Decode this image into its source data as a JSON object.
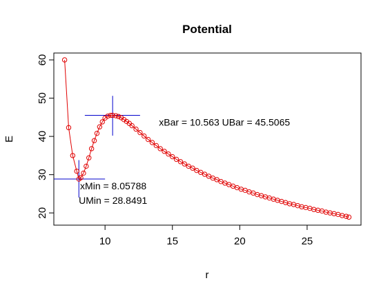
{
  "chart_data": {
    "type": "line",
    "title": "Potential",
    "xlabel": "r",
    "ylabel": "E",
    "xlim": [
      6.2,
      29.0
    ],
    "ylim": [
      16.8,
      61.8
    ],
    "xticks": [
      10,
      15,
      20,
      25
    ],
    "yticks": [
      20,
      30,
      40,
      50,
      60
    ],
    "grid": false,
    "legend": "none",
    "line_color": "#e00000",
    "marker": "open-circle",
    "marker_color": "#e00000",
    "series": [
      {
        "x": [
          7.0,
          7.3,
          7.6,
          7.9,
          8.058,
          8.2,
          8.4,
          8.6,
          8.8,
          9.0,
          9.2,
          9.4,
          9.6,
          9.8,
          10.0,
          10.2,
          10.4,
          10.563,
          10.8,
          11.0,
          11.2,
          11.4,
          11.6,
          11.8,
          12.0,
          12.3,
          12.6,
          12.9,
          13.2,
          13.5,
          13.8,
          14.1,
          14.4,
          14.7,
          15.0,
          15.3,
          15.6,
          15.9,
          16.2,
          16.5,
          16.8,
          17.1,
          17.4,
          17.7,
          18.0,
          18.3,
          18.6,
          18.9,
          19.2,
          19.5,
          19.8,
          20.1,
          20.4,
          20.7,
          21.0,
          21.3,
          21.6,
          21.9,
          22.2,
          22.5,
          22.8,
          23.1,
          23.4,
          23.7,
          24.0,
          24.3,
          24.6,
          24.9,
          25.2,
          25.5,
          25.8,
          26.1,
          26.4,
          26.7,
          27.0,
          27.3,
          27.6,
          27.9,
          28.1
        ],
        "y": [
          60.0,
          42.3,
          35.0,
          30.9,
          28.85,
          29.2,
          30.4,
          32.2,
          34.4,
          36.8,
          38.9,
          40.8,
          42.5,
          43.8,
          44.8,
          45.3,
          45.5,
          45.51,
          45.4,
          45.2,
          44.9,
          44.4,
          43.9,
          43.4,
          42.8,
          41.9,
          41.0,
          40.1,
          39.2,
          38.4,
          37.6,
          36.8,
          36.1,
          35.4,
          34.7,
          34.0,
          33.4,
          32.8,
          32.2,
          31.7,
          31.1,
          30.6,
          30.1,
          29.6,
          29.1,
          28.7,
          28.2,
          27.8,
          27.4,
          27.0,
          26.6,
          26.2,
          25.9,
          25.5,
          25.2,
          24.8,
          24.5,
          24.2,
          23.9,
          23.6,
          23.3,
          23.0,
          22.7,
          22.4,
          22.2,
          21.9,
          21.6,
          21.4,
          21.2,
          20.9,
          20.7,
          20.5,
          20.2,
          20.0,
          19.8,
          19.6,
          19.3,
          19.1,
          18.9
        ]
      }
    ],
    "annotations": [
      {
        "text": "xBar = 10.563   UBar = 45.5065",
        "x": 14.0,
        "y": 42.8
      },
      {
        "text": "xMin = 8.05788",
        "x": 8.15,
        "y": 26.2
      },
      {
        "text": "UMin = 28.8491",
        "x": 8.05,
        "y": 22.4
      }
    ],
    "crosshairs": [
      {
        "name": "max",
        "x": 10.563,
        "y": 45.5065,
        "x_from": 8.5,
        "x_to": 12.6,
        "y_from": 40.2,
        "y_to": 50.6,
        "color": "#0000cc"
      },
      {
        "name": "min",
        "x": 8.05788,
        "y": 28.8491,
        "x_from": 6.2,
        "x_to": 10.0,
        "y_from": 24.0,
        "y_to": 33.8,
        "color": "#0000cc"
      }
    ]
  }
}
